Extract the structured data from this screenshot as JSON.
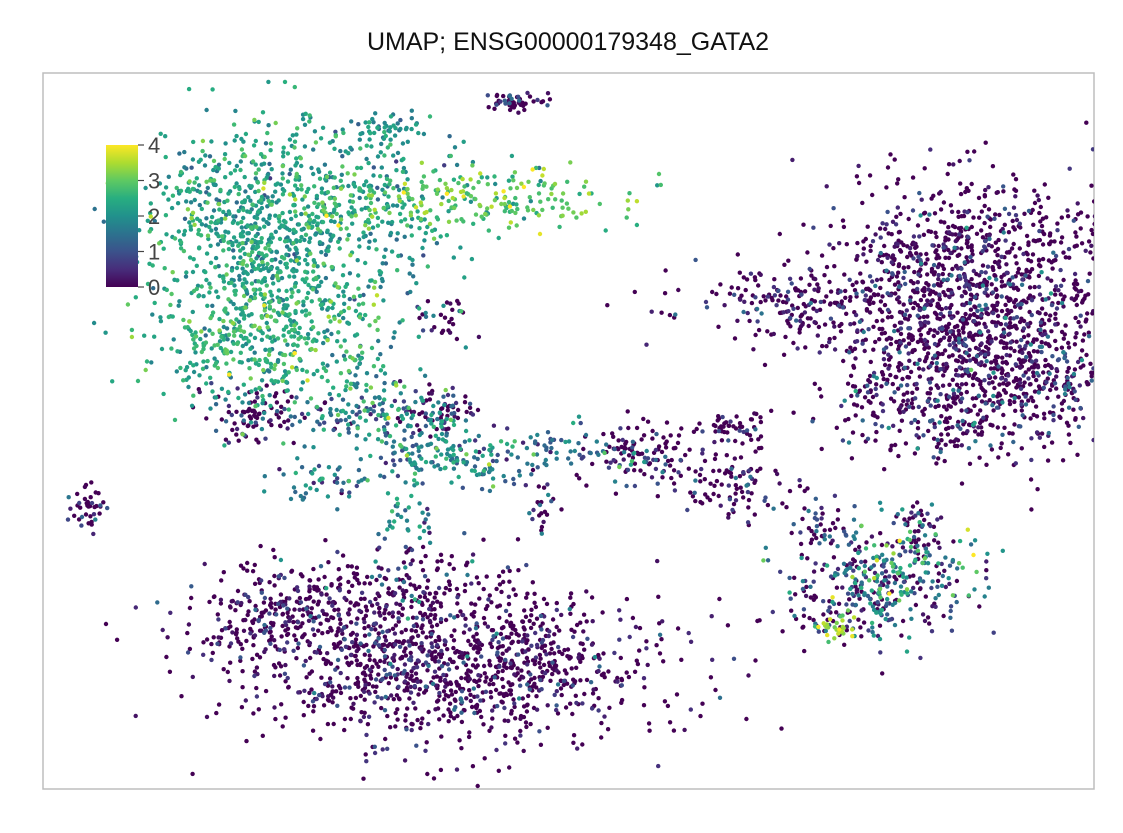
{
  "chart_data": {
    "type": "scatter",
    "title": "UMAP; ENSG00000179348_GATA2",
    "xlabel": "",
    "ylabel": "",
    "axes_visible": false,
    "grid": false,
    "frame": true,
    "colormap": "viridis",
    "color_range": [
      0,
      4
    ],
    "colorbar": {
      "placement": "top-left",
      "ticks": [
        "0",
        "1",
        "2",
        "3",
        "4"
      ]
    },
    "x_range": [
      -10,
      10
    ],
    "y_range": [
      -10,
      10
    ],
    "clusters": [
      {
        "cx": -6.1,
        "cy": 5.4,
        "sx": 1.0,
        "sy": 1.7,
        "n": 650,
        "expr_mean": 2.3,
        "expr_sd": 0.45
      },
      {
        "cx": -4.5,
        "cy": 6.0,
        "sx": 1.3,
        "sy": 1.1,
        "n": 420,
        "expr_mean": 2.2,
        "expr_sd": 0.45
      },
      {
        "cx": -1.9,
        "cy": 6.5,
        "sx": 1.5,
        "sy": 0.5,
        "n": 220,
        "expr_mean": 2.9,
        "expr_sd": 0.5
      },
      {
        "cx": -3.5,
        "cy": 8.4,
        "sx": 0.4,
        "sy": 0.25,
        "n": 60,
        "expr_mean": 2.0,
        "expr_sd": 0.4
      },
      {
        "cx": -6.2,
        "cy": 2.5,
        "sx": 0.9,
        "sy": 0.9,
        "n": 260,
        "expr_mean": 2.4,
        "expr_sd": 0.45
      },
      {
        "cx": -4.5,
        "cy": 2.8,
        "sx": 0.7,
        "sy": 1.0,
        "n": 160,
        "expr_mean": 2.4,
        "expr_sd": 0.5
      },
      {
        "cx": -5.9,
        "cy": 0.4,
        "sx": 0.6,
        "sy": 0.4,
        "n": 110,
        "expr_mean": 0.9,
        "expr_sd": 0.9
      },
      {
        "cx": -2.4,
        "cy": 3.2,
        "sx": 0.3,
        "sy": 0.3,
        "n": 30,
        "expr_mean": 1.0,
        "expr_sd": 0.8
      },
      {
        "cx": -3.5,
        "cy": 0.6,
        "sx": 0.9,
        "sy": 0.5,
        "n": 140,
        "expr_mean": 1.7,
        "expr_sd": 0.7
      },
      {
        "cx": -2.4,
        "cy": 0.5,
        "sx": 0.4,
        "sy": 0.3,
        "n": 60,
        "expr_mean": 0.8,
        "expr_sd": 0.8
      },
      {
        "cx": -2.8,
        "cy": -0.6,
        "sx": 0.6,
        "sy": 0.45,
        "n": 90,
        "expr_mean": 1.8,
        "expr_sd": 0.6
      },
      {
        "cx": -1.6,
        "cy": -0.9,
        "sx": 0.5,
        "sy": 0.4,
        "n": 70,
        "expr_mean": 1.5,
        "expr_sd": 0.7
      },
      {
        "cx": -4.6,
        "cy": -1.4,
        "sx": 0.5,
        "sy": 0.3,
        "n": 50,
        "expr_mean": 1.6,
        "expr_sd": 0.7
      },
      {
        "cx": -3.2,
        "cy": -2.6,
        "sx": 0.3,
        "sy": 0.3,
        "n": 30,
        "expr_mean": 1.8,
        "expr_sd": 0.7
      },
      {
        "cx": 0.0,
        "cy": -0.5,
        "sx": 0.6,
        "sy": 0.3,
        "n": 50,
        "expr_mean": 1.6,
        "expr_sd": 0.7
      },
      {
        "cx": 1.4,
        "cy": -0.6,
        "sx": 0.5,
        "sy": 0.45,
        "n": 120,
        "expr_mean": 0.8,
        "expr_sd": 0.8
      },
      {
        "cx": 3.2,
        "cy": 0.1,
        "sx": 0.3,
        "sy": 0.2,
        "n": 50,
        "expr_mean": 0.3,
        "expr_sd": 0.6
      },
      {
        "cx": 3.0,
        "cy": -1.5,
        "sx": 0.6,
        "sy": 0.45,
        "n": 90,
        "expr_mean": 0.4,
        "expr_sd": 0.6
      },
      {
        "cx": -0.5,
        "cy": -2.2,
        "sx": 0.2,
        "sy": 0.5,
        "n": 25,
        "expr_mean": 1.0,
        "expr_sd": 0.8
      },
      {
        "cx": -1.0,
        "cy": 9.2,
        "sx": 0.3,
        "sy": 0.12,
        "n": 50,
        "expr_mean": 0.5,
        "expr_sd": 0.7
      },
      {
        "cx": -9.2,
        "cy": -2.1,
        "sx": 0.2,
        "sy": 0.4,
        "n": 40,
        "expr_mean": 0.5,
        "expr_sd": 0.7
      },
      {
        "cx": -5.6,
        "cy": -5.1,
        "sx": 0.9,
        "sy": 0.7,
        "n": 230,
        "expr_mean": 0.3,
        "expr_sd": 0.6
      },
      {
        "cx": -2.2,
        "cy": -6.5,
        "sx": 2.0,
        "sy": 1.1,
        "n": 1200,
        "expr_mean": 0.3,
        "expr_sd": 0.6
      },
      {
        "cx": -3.3,
        "cy": -4.3,
        "sx": 1.1,
        "sy": 0.6,
        "n": 150,
        "expr_mean": 0.7,
        "expr_sd": 0.8
      },
      {
        "cx": 4.6,
        "cy": 3.5,
        "sx": 1.2,
        "sy": 0.6,
        "n": 230,
        "expr_mean": 0.4,
        "expr_sd": 0.6
      },
      {
        "cx": 7.8,
        "cy": 4.6,
        "sx": 1.4,
        "sy": 1.3,
        "n": 780,
        "expr_mean": 0.3,
        "expr_sd": 0.55
      },
      {
        "cx": 7.5,
        "cy": 2.3,
        "sx": 1.2,
        "sy": 1.2,
        "n": 500,
        "expr_mean": 0.4,
        "expr_sd": 0.6
      },
      {
        "cx": 8.6,
        "cy": 1.6,
        "sx": 0.9,
        "sy": 1.1,
        "n": 320,
        "expr_mean": 0.8,
        "expr_sd": 0.8
      },
      {
        "cx": 6.9,
        "cy": 0.4,
        "sx": 1.0,
        "sy": 0.6,
        "n": 180,
        "expr_mean": 0.6,
        "expr_sd": 0.8
      },
      {
        "cx": 5.7,
        "cy": 1.2,
        "sx": 0.2,
        "sy": 0.2,
        "n": 12,
        "expr_mean": 1.0,
        "expr_sd": 0.7
      },
      {
        "cx": 6.1,
        "cy": -4.0,
        "sx": 0.9,
        "sy": 0.8,
        "n": 320,
        "expr_mean": 1.3,
        "expr_sd": 1.1
      },
      {
        "cx": 5.3,
        "cy": -5.0,
        "sx": 0.6,
        "sy": 0.5,
        "n": 90,
        "expr_mean": 0.9,
        "expr_sd": 1.0
      },
      {
        "cx": 5.0,
        "cy": -5.5,
        "sx": 0.2,
        "sy": 0.15,
        "n": 25,
        "expr_mean": 3.3,
        "expr_sd": 0.4
      },
      {
        "cx": 6.6,
        "cy": -2.7,
        "sx": 0.3,
        "sy": 0.5,
        "n": 40,
        "expr_mean": 0.4,
        "expr_sd": 0.6
      },
      {
        "cx": 4.6,
        "cy": -2.6,
        "sx": 0.3,
        "sy": 0.5,
        "n": 40,
        "expr_mean": 0.4,
        "expr_sd": 0.6
      }
    ]
  }
}
